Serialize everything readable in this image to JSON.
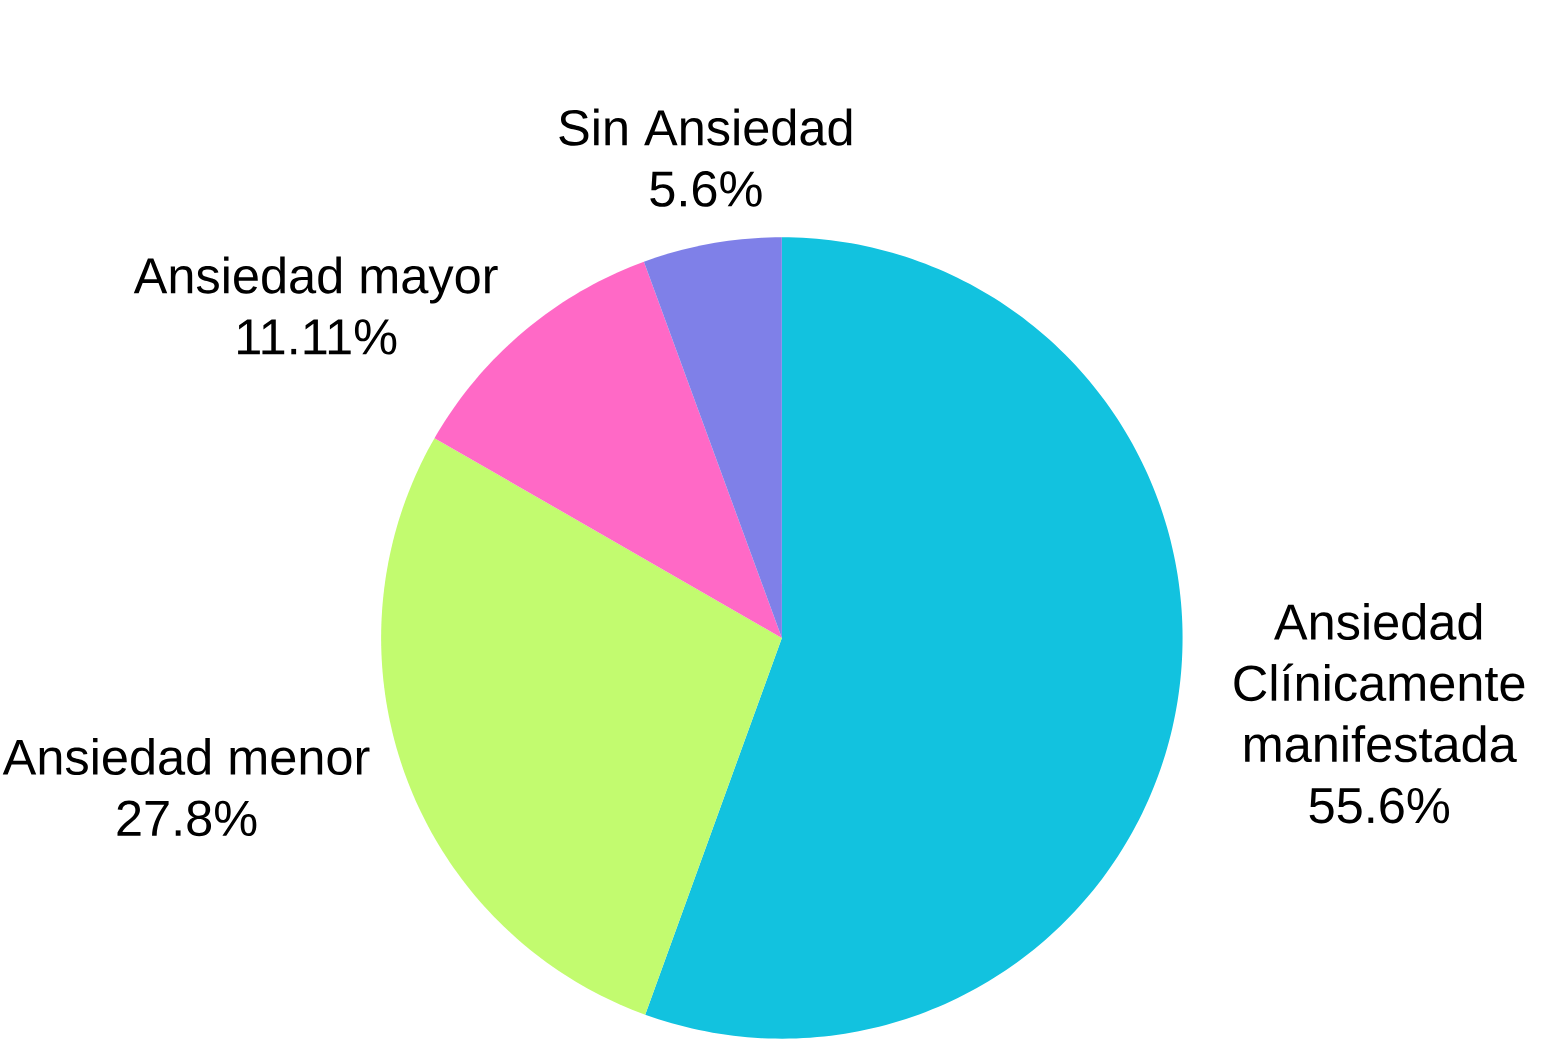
{
  "chart_data": {
    "type": "pie",
    "categories": [
      "Ansiedad Clínicamente manifestada",
      "Ansiedad menor",
      "Ansiedad mayor",
      "Sin Ansiedad"
    ],
    "values": [
      55.6,
      27.8,
      11.11,
      5.6
    ],
    "value_labels": [
      "55.6%",
      "27.8%",
      "11.11%",
      "5.6%"
    ],
    "colors": [
      "#12c2df",
      "#c2fb6f",
      "#ff69c6",
      "#7f80e8"
    ]
  }
}
